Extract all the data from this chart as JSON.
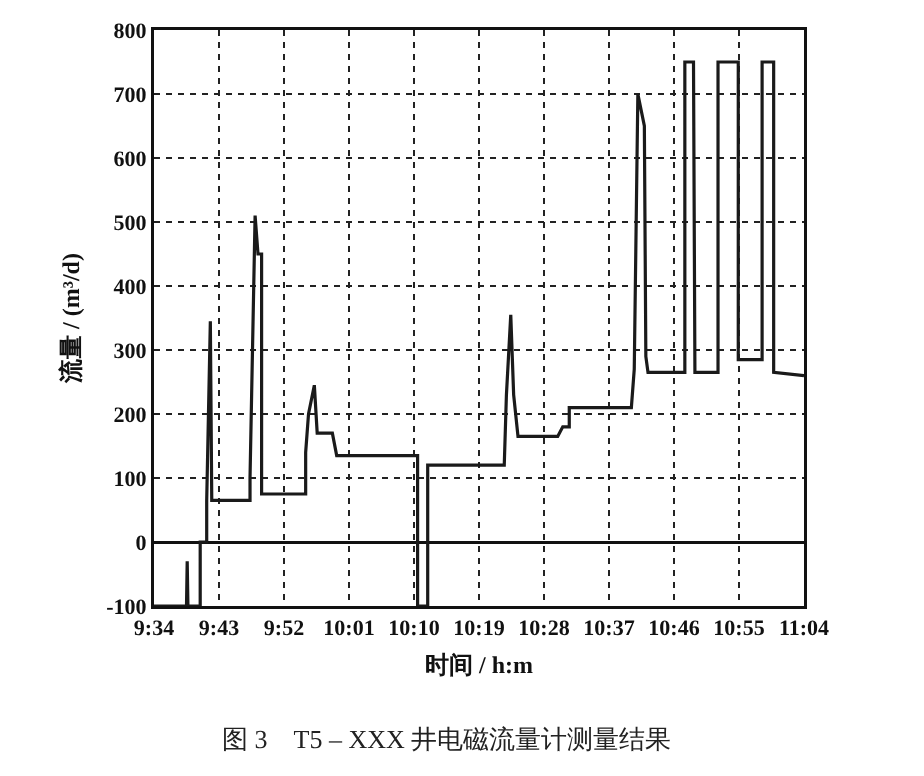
{
  "chart_data": {
    "type": "line",
    "title": "图 3　T5 – XXX 井电磁流量计测量结果",
    "xlabel": "时间 / h:m",
    "ylabel": "流量 / (m³/d)",
    "x": [
      9.5667,
      9.6417,
      9.6433,
      9.645,
      9.6733,
      9.6733,
      9.6883,
      9.6883,
      9.6967,
      9.7,
      9.7883,
      9.7883,
      9.8,
      9.8067,
      9.815,
      9.815,
      9.9167,
      9.9167,
      9.9233,
      9.9367,
      9.9433,
      9.9783,
      9.9883,
      10.175,
      10.175,
      10.1983,
      10.1983,
      10.375,
      10.38,
      10.39,
      10.3967,
      10.4067,
      10.4983,
      10.51,
      10.525,
      10.525,
      10.6683,
      10.675,
      10.6833,
      10.6983,
      10.7017,
      10.7067,
      10.7917,
      10.7917,
      10.8117,
      10.815,
      10.8683,
      10.8683,
      10.915,
      10.915,
      10.97,
      10.97,
      10.9967,
      10.9967,
      11.0667
    ],
    "series": [
      {
        "color": "#1a1a1a",
        "values": [
          -100,
          -100,
          -30,
          -100,
          -100,
          0,
          0,
          65,
          345,
          65,
          65,
          100,
          510,
          450,
          450,
          75,
          75,
          140,
          200,
          245,
          170,
          170,
          135,
          135,
          -100,
          -100,
          120,
          120,
          230,
          355,
          230,
          165,
          165,
          180,
          180,
          210,
          210,
          270,
          700,
          650,
          290,
          265,
          265,
          750,
          750,
          265,
          265,
          750,
          750,
          285,
          285,
          750,
          750,
          265,
          260
        ]
      }
    ],
    "xlim": [
      9.5667,
      11.0667
    ],
    "xticks": [
      {
        "value": 9.5667,
        "label": "9:34"
      },
      {
        "value": 9.7167,
        "label": "9:43"
      },
      {
        "value": 9.8667,
        "label": "9:52"
      },
      {
        "value": 10.0167,
        "label": "10:01"
      },
      {
        "value": 10.1667,
        "label": "10:10"
      },
      {
        "value": 10.3167,
        "label": "10:19"
      },
      {
        "value": 10.4667,
        "label": "10:28"
      },
      {
        "value": 10.6167,
        "label": "10:37"
      },
      {
        "value": 10.7667,
        "label": "10:46"
      },
      {
        "value": 10.9167,
        "label": "10:55"
      },
      {
        "value": 11.0667,
        "label": "11:04"
      }
    ],
    "ylim": [
      -100,
      800
    ],
    "yticks": [
      -100,
      0,
      100,
      200,
      300,
      400,
      500,
      600,
      700,
      800
    ],
    "grid": true,
    "marker": "none",
    "line_style": "solid"
  }
}
